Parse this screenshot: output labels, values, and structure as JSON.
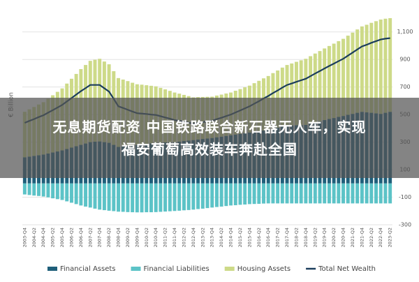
{
  "chart_data": {
    "type": "bar",
    "stacked": true,
    "ylabel": "€ Billion",
    "ylim": [
      -300,
      1200
    ],
    "yticks": [
      -300,
      -100,
      100,
      300,
      500,
      700,
      900,
      {
        "value": 1100,
        "label": "1,100"
      }
    ],
    "grid": true,
    "legend": "bottom",
    "categories": [
      "2003-Q4",
      null,
      "2004-Q2",
      null,
      "2004-Q4",
      null,
      "2005-Q2",
      null,
      "2005-Q4",
      null,
      "2006-Q2",
      null,
      "2006-Q4",
      null,
      "2007-Q2",
      null,
      "2007-Q4",
      null,
      "2008-Q2",
      null,
      "2008-Q4",
      null,
      "2009-Q2",
      null,
      "2009-Q4",
      null,
      "2010-Q2",
      null,
      "2010-Q4",
      null,
      "2011-Q2",
      null,
      "2011-Q4",
      null,
      "2012-Q2",
      null,
      "2012-Q4",
      null,
      "2013-Q2",
      null,
      "2013-Q4",
      null,
      "2014-Q2",
      null,
      "2014-Q4",
      null,
      "2015-Q2",
      null,
      "2015-Q4",
      null,
      "2016-Q2",
      null,
      "2016-Q4",
      null,
      "2017-Q2",
      null,
      "2017-Q4",
      null,
      "2018-Q2",
      null,
      "2018-Q4",
      null,
      "2019-Q2",
      null,
      "2019-Q4",
      null,
      "2020-Q2",
      null,
      "2020-Q4",
      null,
      "2021-Q2",
      null,
      "2021-Q4",
      null,
      "2022-Q2",
      null,
      "2022-Q4",
      null,
      "2023-Q2"
    ],
    "series": [
      {
        "name": "Financial Assets",
        "color": "#1f5f7a",
        "values": [
          190,
          195,
          200,
          205,
          210,
          217,
          225,
          232,
          240,
          250,
          260,
          270,
          280,
          290,
          300,
          303,
          305,
          300,
          295,
          280,
          265,
          269,
          273,
          276,
          280,
          284,
          288,
          291,
          295,
          296,
          298,
          299,
          300,
          304,
          308,
          311,
          315,
          319,
          323,
          326,
          330,
          335,
          340,
          345,
          350,
          355,
          360,
          365,
          370,
          375,
          380,
          385,
          390,
          398,
          405,
          413,
          420,
          421,
          423,
          424,
          425,
          434,
          443,
          451,
          460,
          468,
          475,
          483,
          490,
          498,
          505,
          513,
          520,
          516,
          513,
          509,
          505,
          513,
          520
        ]
      },
      {
        "name": "Financial Liabilities",
        "color": "#5cc3c7",
        "values": [
          -80,
          -84,
          -88,
          -91,
          -95,
          -101,
          -108,
          -114,
          -120,
          -130,
          -140,
          -150,
          -160,
          -168,
          -175,
          -183,
          -190,
          -194,
          -198,
          -201,
          -205,
          -206,
          -208,
          -209,
          -210,
          -210,
          -209,
          -209,
          -208,
          -206,
          -204,
          -202,
          -200,
          -198,
          -195,
          -193,
          -190,
          -186,
          -183,
          -179,
          -175,
          -171,
          -168,
          -164,
          -160,
          -158,
          -155,
          -153,
          -150,
          -149,
          -148,
          -146,
          -145,
          -145,
          -145,
          -145,
          -145,
          -145,
          -145,
          -145,
          -145,
          -145,
          -145,
          -145,
          -145,
          -145,
          -145,
          -145,
          -145,
          -145,
          -145,
          -145,
          -145,
          -145,
          -145,
          -145,
          -145,
          -145,
          -145
        ]
      },
      {
        "name": "Housing Assets",
        "color": "#cdda88",
        "values": [
          330,
          343,
          355,
          368,
          380,
          398,
          415,
          433,
          450,
          475,
          500,
          525,
          550,
          570,
          590,
          595,
          600,
          585,
          570,
          535,
          500,
          485,
          470,
          455,
          440,
          433,
          425,
          418,
          410,
          398,
          385,
          373,
          360,
          348,
          335,
          323,
          310,
          308,
          305,
          303,
          300,
          303,
          305,
          308,
          310,
          318,
          325,
          333,
          340,
          353,
          365,
          378,
          390,
          403,
          415,
          428,
          440,
          450,
          460,
          470,
          480,
          490,
          500,
          510,
          520,
          530,
          540,
          550,
          560,
          575,
          590,
          605,
          620,
          636,
          653,
          669,
          685,
          683,
          680
        ]
      },
      {
        "name": "Total Net Wealth",
        "type": "line",
        "color": "#1b3d5c",
        "values": [
          440,
          454,
          467,
          482,
          495,
          514,
          532,
          551,
          570,
          595,
          620,
          645,
          670,
          692,
          715,
          715,
          715,
          691,
          667,
          614,
          560,
          548,
          535,
          522,
          510,
          507,
          504,
          500,
          497,
          488,
          479,
          470,
          460,
          454,
          448,
          441,
          435,
          441,
          445,
          450,
          455,
          467,
          477,
          489,
          500,
          515,
          530,
          545,
          560,
          579,
          597,
          617,
          635,
          656,
          675,
          696,
          715,
          726,
          738,
          749,
          760,
          779,
          798,
          816,
          835,
          853,
          870,
          888,
          905,
          928,
          950,
          973,
          995,
          1007,
          1021,
          1033,
          1045,
          1051,
          1055
        ]
      }
    ]
  },
  "overlay": {
    "lines": [
      "无息期货配资 中国铁路联合新石器无人车，实现",
      "福安葡萄高效装车奔赴全国"
    ]
  }
}
